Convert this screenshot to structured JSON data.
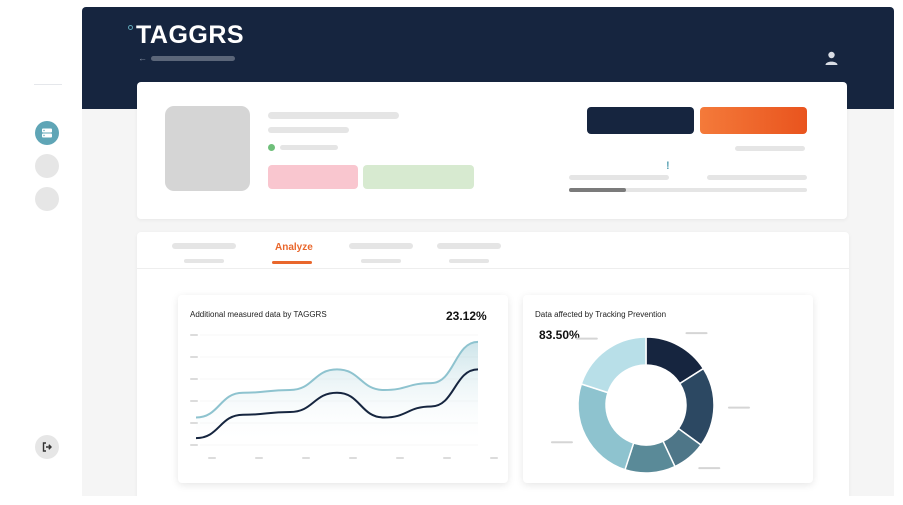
{
  "brand": {
    "logo_text": "TAGGRS",
    "accent": "#5fa5b6",
    "navy": "#16253f",
    "orange": "#e9672c"
  },
  "sidebar": {
    "items": [
      {
        "icon": "server-icon",
        "active": true
      },
      {
        "icon": "blank-circle-icon",
        "active": false
      },
      {
        "icon": "blank-circle-icon",
        "active": false
      }
    ],
    "logout_icon": "logout-icon"
  },
  "header": {
    "user_icon": "user-icon"
  },
  "profile": {
    "progress": 0.24,
    "status_color": "#6fbf7a",
    "notice_mark": "!"
  },
  "tabs": {
    "active_label": "Analyze"
  },
  "measured_card": {
    "title": "Additional measured data by TAGGRS",
    "percentage": "23.12%"
  },
  "tracking_card": {
    "title": "Data affected by Tracking Prevention",
    "percentage": "83.50%"
  },
  "chart_data": [
    {
      "type": "area",
      "title": "Additional measured data by TAGGRS",
      "series": [
        {
          "values": [
            20,
            38,
            40,
            55,
            40,
            45,
            75
          ]
        },
        {
          "values": [
            5,
            22,
            24,
            38,
            20,
            28,
            55
          ]
        }
      ],
      "ylim": [
        0,
        80
      ],
      "grid": true,
      "colors": [
        "#8ec3cf",
        "#16253f"
      ]
    },
    {
      "type": "pie",
      "title": "Data affected by Tracking Prevention",
      "values": [
        16,
        19,
        8,
        12,
        25,
        20
      ],
      "colors": [
        "#16253f",
        "#2c4862",
        "#4e7688",
        "#5a8a98",
        "#8ec3cf",
        "#b8dfe8"
      ]
    }
  ]
}
